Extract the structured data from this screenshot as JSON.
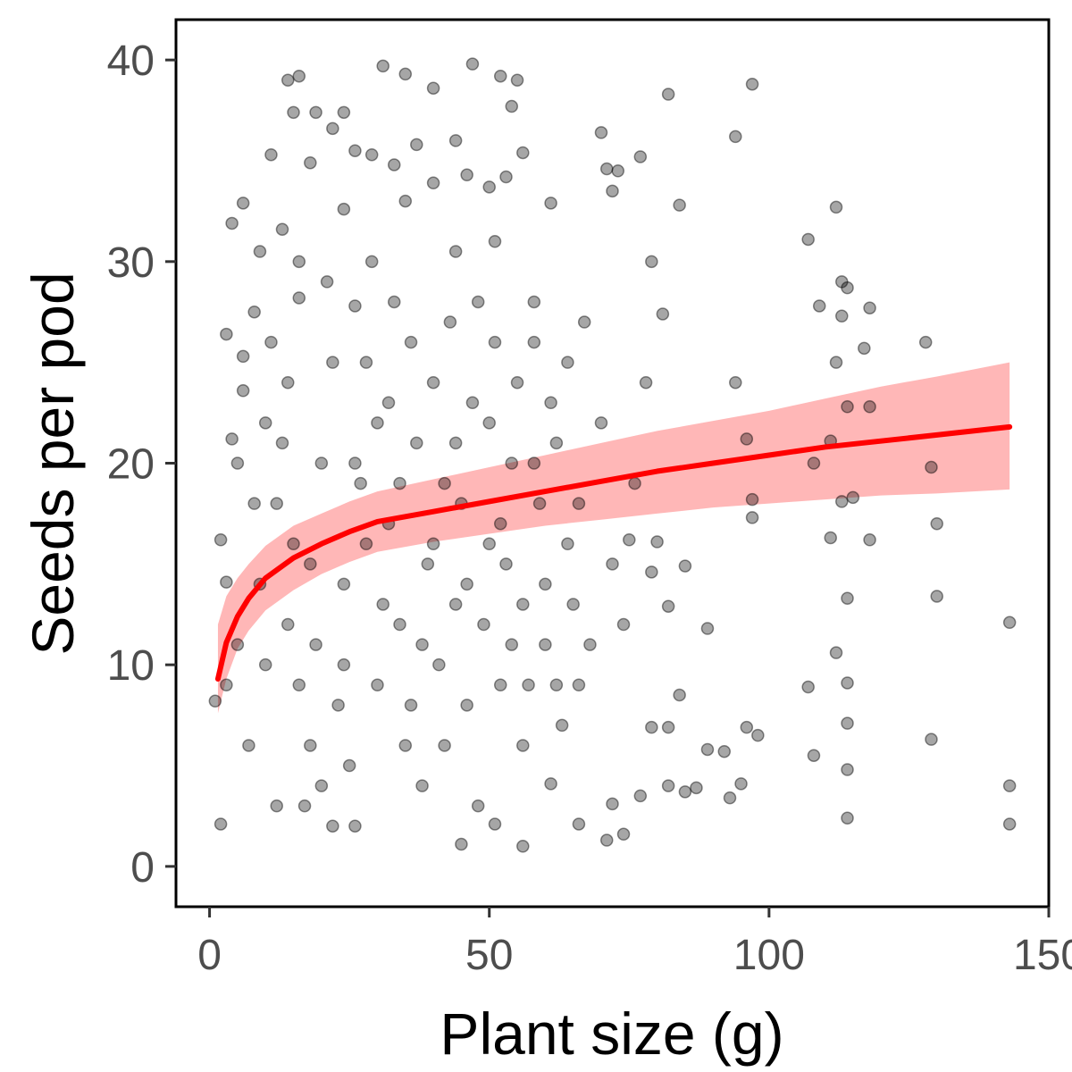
{
  "chart_data": {
    "type": "scatter",
    "title": "",
    "xlabel": "Plant size (g)",
    "ylabel": "Seeds per pod",
    "xlim": [
      -6,
      150
    ],
    "ylim": [
      -2,
      42
    ],
    "x_ticks": [
      0,
      50,
      100,
      150
    ],
    "y_ticks": [
      0,
      10,
      20,
      30,
      40
    ],
    "x_tick_labels": [
      "0",
      "50",
      "100",
      "150"
    ],
    "y_tick_labels": [
      "0",
      "10",
      "20",
      "30",
      "40"
    ],
    "grid": false,
    "legend": "none",
    "colors": {
      "points": "#000000",
      "fit_line": "#ff0000",
      "ribbon": "#ffb3b3",
      "panel_border": "#000000"
    },
    "point_opacity": 0.35,
    "series": [
      {
        "kind": "points",
        "points": [
          [
            14,
            39
          ],
          [
            16,
            39.2
          ],
          [
            31,
            39.7
          ],
          [
            35,
            39.3
          ],
          [
            40,
            38.6
          ],
          [
            47,
            39.8
          ],
          [
            52,
            39.2
          ],
          [
            55,
            39
          ],
          [
            82,
            38.3
          ],
          [
            97,
            38.8
          ],
          [
            15,
            37.4
          ],
          [
            19,
            37.4
          ],
          [
            24,
            37.4
          ],
          [
            54,
            37.7
          ],
          [
            22,
            36.6
          ],
          [
            70,
            36.4
          ],
          [
            94,
            36.2
          ],
          [
            26,
            35.5
          ],
          [
            29,
            35.3
          ],
          [
            37,
            35.8
          ],
          [
            44,
            36
          ],
          [
            56,
            35.4
          ],
          [
            77,
            35.2
          ],
          [
            11,
            35.3
          ],
          [
            18,
            34.9
          ],
          [
            33,
            34.8
          ],
          [
            46,
            34.3
          ],
          [
            71,
            34.6
          ],
          [
            73,
            34.5
          ],
          [
            53,
            34.2
          ],
          [
            40,
            33.9
          ],
          [
            50,
            33.7
          ],
          [
            72,
            33.5
          ],
          [
            6,
            32.9
          ],
          [
            84,
            32.8
          ],
          [
            112,
            32.7
          ],
          [
            61,
            32.9
          ],
          [
            107,
            31.1
          ],
          [
            24,
            32.6
          ],
          [
            35,
            33
          ],
          [
            4,
            31.9
          ],
          [
            9,
            30.5
          ],
          [
            13,
            31.6
          ],
          [
            51,
            31
          ],
          [
            44,
            30.5
          ],
          [
            79,
            30
          ],
          [
            113,
            29
          ],
          [
            114,
            28.7
          ],
          [
            26,
            27.8
          ],
          [
            16,
            28.2
          ],
          [
            58,
            28
          ],
          [
            118,
            27.7
          ],
          [
            109,
            27.8
          ],
          [
            113,
            27.3
          ],
          [
            81,
            27.4
          ],
          [
            128,
            26
          ],
          [
            117,
            25.7
          ],
          [
            112,
            25
          ],
          [
            94,
            24
          ],
          [
            6,
            25.3
          ],
          [
            3,
            26.4
          ],
          [
            96,
            21.2
          ],
          [
            97,
            18.2
          ],
          [
            114,
            22.8
          ],
          [
            118,
            22.8
          ],
          [
            129,
            19.8
          ],
          [
            111,
            21.1
          ],
          [
            108,
            20
          ],
          [
            115,
            18.3
          ],
          [
            113,
            18.1
          ],
          [
            97,
            17.3
          ],
          [
            111,
            16.3
          ],
          [
            118,
            16.2
          ],
          [
            130,
            17
          ],
          [
            80,
            16.1
          ],
          [
            75,
            16.2
          ],
          [
            79,
            14.6
          ],
          [
            85,
            14.9
          ],
          [
            130,
            13.4
          ],
          [
            114,
            13.3
          ],
          [
            82,
            12.9
          ],
          [
            89,
            11.8
          ],
          [
            143,
            12.1
          ],
          [
            112,
            10.6
          ],
          [
            114,
            9.1
          ],
          [
            107,
            8.9
          ],
          [
            84,
            8.5
          ],
          [
            79,
            6.9
          ],
          [
            82,
            6.9
          ],
          [
            96,
            6.9
          ],
          [
            98,
            6.5
          ],
          [
            89,
            5.8
          ],
          [
            92,
            5.7
          ],
          [
            108,
            5.5
          ],
          [
            114,
            7.1
          ],
          [
            114,
            4.8
          ],
          [
            129,
            6.3
          ],
          [
            95,
            4.1
          ],
          [
            82,
            4
          ],
          [
            87,
            3.9
          ],
          [
            85,
            3.7
          ],
          [
            93,
            3.4
          ],
          [
            143,
            4
          ],
          [
            143,
            2.1
          ],
          [
            114,
            2.4
          ],
          [
            74,
            1.6
          ],
          [
            71,
            1.3
          ],
          [
            77,
            3.5
          ],
          [
            72,
            3.1
          ],
          [
            61,
            4.1
          ],
          [
            56,
            1
          ],
          [
            45,
            1.1
          ],
          [
            51,
            2.1
          ],
          [
            66,
            2.1
          ],
          [
            2,
            2.1
          ],
          [
            1,
            8.2
          ],
          [
            3,
            9
          ],
          [
            5,
            11
          ],
          [
            7,
            6
          ],
          [
            2,
            16.2
          ],
          [
            3,
            14.1
          ],
          [
            5,
            20
          ],
          [
            4,
            21.2
          ],
          [
            6,
            23.6
          ],
          [
            8,
            27.5
          ],
          [
            10,
            22
          ],
          [
            12,
            18
          ],
          [
            14,
            12
          ],
          [
            16,
            9
          ],
          [
            18,
            6
          ],
          [
            20,
            4
          ],
          [
            22,
            2
          ],
          [
            24,
            14
          ],
          [
            26,
            20
          ],
          [
            28,
            25
          ],
          [
            30,
            22
          ],
          [
            32,
            17
          ],
          [
            34,
            12
          ],
          [
            36,
            8
          ],
          [
            38,
            4
          ],
          [
            40,
            24
          ],
          [
            42,
            19
          ],
          [
            44,
            13
          ],
          [
            46,
            8
          ],
          [
            48,
            3
          ],
          [
            50,
            22
          ],
          [
            52,
            17
          ],
          [
            54,
            11
          ],
          [
            56,
            6
          ],
          [
            58,
            20
          ],
          [
            60,
            14
          ],
          [
            62,
            9
          ],
          [
            64,
            25
          ],
          [
            66,
            18
          ],
          [
            68,
            11
          ],
          [
            70,
            22
          ],
          [
            72,
            15
          ],
          [
            74,
            12
          ],
          [
            76,
            19
          ],
          [
            78,
            24
          ],
          [
            9,
            14
          ],
          [
            11,
            26
          ],
          [
            13,
            21
          ],
          [
            15,
            16
          ],
          [
            17,
            3
          ],
          [
            19,
            11
          ],
          [
            21,
            29
          ],
          [
            23,
            8
          ],
          [
            25,
            5
          ],
          [
            27,
            19
          ],
          [
            29,
            30
          ],
          [
            31,
            13
          ],
          [
            33,
            28
          ],
          [
            35,
            6
          ],
          [
            37,
            21
          ],
          [
            39,
            15
          ],
          [
            41,
            10
          ],
          [
            43,
            27
          ],
          [
            45,
            18
          ],
          [
            47,
            23
          ],
          [
            49,
            12
          ],
          [
            51,
            26
          ],
          [
            53,
            15
          ],
          [
            55,
            24
          ],
          [
            57,
            9
          ],
          [
            59,
            18
          ],
          [
            61,
            23
          ],
          [
            63,
            7
          ],
          [
            65,
            13
          ],
          [
            67,
            27
          ],
          [
            8,
            18
          ],
          [
            10,
            10
          ],
          [
            12,
            3
          ],
          [
            14,
            24
          ],
          [
            16,
            30
          ],
          [
            18,
            15
          ],
          [
            20,
            20
          ],
          [
            22,
            25
          ],
          [
            24,
            10
          ],
          [
            26,
            2
          ],
          [
            28,
            16
          ],
          [
            30,
            9
          ],
          [
            32,
            23
          ],
          [
            34,
            19
          ],
          [
            36,
            26
          ],
          [
            38,
            11
          ],
          [
            40,
            16
          ],
          [
            42,
            6
          ],
          [
            44,
            21
          ],
          [
            46,
            14
          ],
          [
            48,
            28
          ],
          [
            50,
            16
          ],
          [
            52,
            9
          ],
          [
            54,
            20
          ],
          [
            56,
            13
          ],
          [
            58,
            26
          ],
          [
            60,
            11
          ],
          [
            62,
            21
          ],
          [
            64,
            16
          ],
          [
            66,
            9
          ]
        ]
      },
      {
        "kind": "fit_line",
        "points": [
          [
            1.5,
            9.3
          ],
          [
            3,
            11.1
          ],
          [
            5,
            12.4
          ],
          [
            7,
            13.3
          ],
          [
            10,
            14.3
          ],
          [
            15,
            15.3
          ],
          [
            20,
            16
          ],
          [
            25,
            16.6
          ],
          [
            30,
            17.1
          ],
          [
            40,
            17.6
          ],
          [
            50,
            18.1
          ],
          [
            60,
            18.6
          ],
          [
            70,
            19.1
          ],
          [
            80,
            19.6
          ],
          [
            90,
            20
          ],
          [
            100,
            20.4
          ],
          [
            110,
            20.8
          ],
          [
            120,
            21.1
          ],
          [
            130,
            21.4
          ],
          [
            143,
            21.8
          ]
        ]
      },
      {
        "kind": "confidence_band",
        "upper": [
          [
            1.5,
            12
          ],
          [
            3,
            13.4
          ],
          [
            5,
            14.3
          ],
          [
            7,
            15
          ],
          [
            10,
            15.9
          ],
          [
            15,
            16.9
          ],
          [
            20,
            17.5
          ],
          [
            25,
            18.1
          ],
          [
            30,
            18.6
          ],
          [
            40,
            19.2
          ],
          [
            50,
            19.8
          ],
          [
            60,
            20.4
          ],
          [
            70,
            21
          ],
          [
            80,
            21.6
          ],
          [
            90,
            22.1
          ],
          [
            100,
            22.6
          ],
          [
            110,
            23.2
          ],
          [
            120,
            23.8
          ],
          [
            130,
            24.3
          ],
          [
            143,
            25
          ]
        ],
        "lower": [
          [
            1.5,
            7.6
          ],
          [
            3,
            9.3
          ],
          [
            5,
            10.8
          ],
          [
            7,
            11.7
          ],
          [
            10,
            12.7
          ],
          [
            15,
            13.7
          ],
          [
            20,
            14.5
          ],
          [
            25,
            15.1
          ],
          [
            30,
            15.6
          ],
          [
            40,
            16.1
          ],
          [
            50,
            16.5
          ],
          [
            60,
            16.9
          ],
          [
            70,
            17.2
          ],
          [
            80,
            17.5
          ],
          [
            90,
            17.8
          ],
          [
            100,
            18
          ],
          [
            110,
            18.2
          ],
          [
            120,
            18.4
          ],
          [
            130,
            18.5
          ],
          [
            143,
            18.7
          ]
        ]
      }
    ]
  }
}
